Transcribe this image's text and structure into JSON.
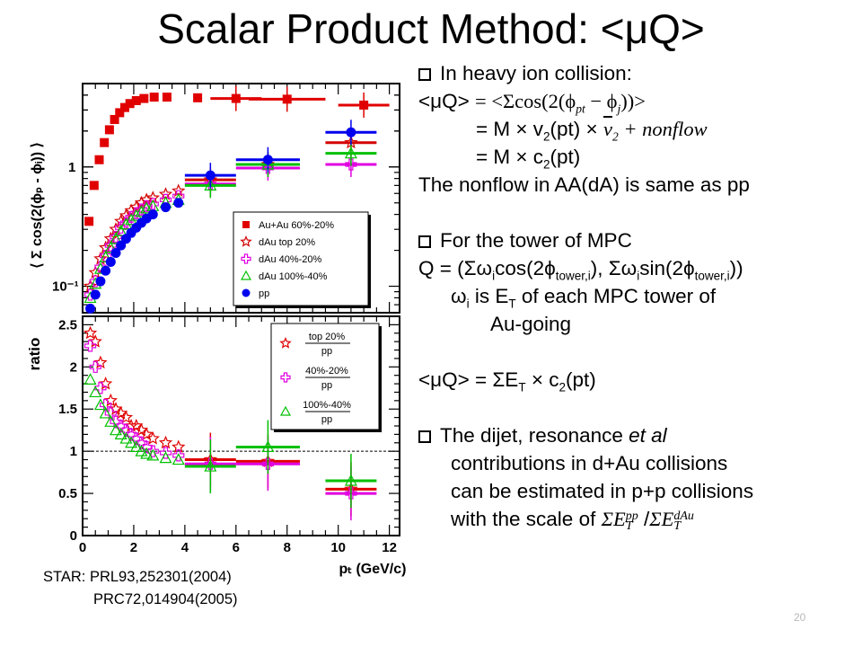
{
  "slide": {
    "title": "Scalar Product Method: <μQ>",
    "bullet1": {
      "heading": "In heavy ion collision:",
      "line1_lhs": "<μQ>",
      "line1_rhs": "= <Σcos(2(ϕ",
      "line1_sub1": "pt",
      "line1_mid": " − ϕ",
      "line1_sub2": "j",
      "line1_end": "))>",
      "line2_a": "= M × v",
      "line2_sub": "2",
      "line2_b": "(pt) × ",
      "line2_vbar": "v",
      "line2_vsub": "2",
      "line2_c": " + nonflow",
      "line3_a": "= M × c",
      "line3_sub": "2",
      "line3_b": "(pt)",
      "line4": "The nonflow in AA(dA) is same as pp"
    },
    "bullet2": {
      "heading": "For the tower of MPC",
      "q_a": "Q = (Σω",
      "q_i1": "i",
      "q_b": "cos(2ϕ",
      "q_sub1": "tower,i",
      "q_c": "), Σω",
      "q_i2": "i",
      "q_d": "sin(2ϕ",
      "q_sub2": "tower,i",
      "q_e": "))",
      "w_a": "ω",
      "w_i": "i",
      "w_b": " is E",
      "w_T": "T",
      "w_c": " of each MPC tower of",
      "w_line2": "Au-going",
      "mu_a": "<μQ> = ΣE",
      "mu_T": "T",
      "mu_b": " × c",
      "mu_sub": "2",
      "mu_c": "(pt)"
    },
    "bullet3": {
      "line1_a": "The dijet, resonance ",
      "line1_it": "et al",
      "line2": "contributions in d+Au collisions",
      "line3": "can be estimated in p+p collisions",
      "line4_a": "with the scale of ",
      "scale_num_a": "ΣE",
      "scale_num_sup": "pp",
      "scale_num_sub": "T",
      "scale_slash": " /",
      "scale_den_a": "ΣE",
      "scale_den_sup": "dAu",
      "scale_den_sub": "T"
    },
    "reference_line1": "STAR:  PRL93,252301(2004)",
    "reference_line2": "PRC72,014904(2005)",
    "page_number": "20"
  },
  "chart_data": [
    {
      "type": "scatter",
      "panel": "top",
      "ylabel": "⟨ Σ cos(2(ϕₚ - ϕᵢ)) ⟩",
      "yscale": "log",
      "ylim": [
        0.06,
        5
      ],
      "xlim": [
        0,
        12
      ],
      "yticks": [
        "1",
        "10⁻¹"
      ],
      "legend_position": "bottom-right",
      "series": [
        {
          "name": "Au+Au 60%-20%",
          "color": "#e00000",
          "marker": "square",
          "x": [
            0.25,
            0.45,
            0.65,
            0.85,
            1.05,
            1.25,
            1.45,
            1.65,
            1.85,
            2.1,
            2.4,
            2.8,
            3.3,
            4.5,
            6.0,
            8.0,
            11.0
          ],
          "y": [
            0.35,
            0.7,
            1.15,
            1.6,
            2.05,
            2.5,
            2.85,
            3.15,
            3.4,
            3.6,
            3.75,
            3.85,
            3.85,
            3.8,
            3.75,
            3.7,
            3.3
          ]
        },
        {
          "name": "dAu top 20%",
          "color": "#d40000",
          "marker": "star",
          "x": [
            0.3,
            0.5,
            0.7,
            0.9,
            1.1,
            1.3,
            1.5,
            1.7,
            1.9,
            2.1,
            2.3,
            2.5,
            2.75,
            3.25,
            3.75,
            5.0,
            7.25,
            10.5
          ],
          "y": [
            0.1,
            0.13,
            0.17,
            0.21,
            0.25,
            0.3,
            0.35,
            0.39,
            0.43,
            0.46,
            0.5,
            0.53,
            0.55,
            0.59,
            0.63,
            0.78,
            1.05,
            1.6
          ]
        },
        {
          "name": "dAu 40%-20%",
          "color": "#e000e0",
          "marker": "open-cross",
          "x": [
            0.3,
            0.5,
            0.7,
            0.9,
            1.1,
            1.3,
            1.5,
            1.7,
            1.9,
            2.1,
            2.3,
            2.5,
            2.75,
            3.25,
            3.75,
            5.0,
            7.25,
            10.5
          ],
          "y": [
            0.085,
            0.11,
            0.145,
            0.18,
            0.22,
            0.26,
            0.31,
            0.34,
            0.38,
            0.41,
            0.44,
            0.47,
            0.49,
            0.53,
            0.57,
            0.72,
            0.98,
            1.05
          ]
        },
        {
          "name": "dAu 100%-40%",
          "color": "#00c000",
          "marker": "open-triangle",
          "x": [
            0.3,
            0.5,
            0.7,
            0.9,
            1.1,
            1.3,
            1.5,
            1.7,
            1.9,
            2.1,
            2.3,
            2.5,
            2.75,
            3.25,
            3.75,
            5.0,
            7.25,
            10.5
          ],
          "y": [
            0.08,
            0.105,
            0.14,
            0.175,
            0.21,
            0.25,
            0.29,
            0.33,
            0.36,
            0.39,
            0.42,
            0.45,
            0.47,
            0.5,
            0.53,
            0.7,
            1.05,
            1.3
          ]
        },
        {
          "name": "pp",
          "color": "#0000ee",
          "marker": "circle",
          "x": [
            0.3,
            0.5,
            0.7,
            0.9,
            1.1,
            1.3,
            1.5,
            1.7,
            1.9,
            2.1,
            2.3,
            2.5,
            2.75,
            3.25,
            3.75,
            5.0,
            7.25,
            10.5
          ],
          "y": [
            0.065,
            0.085,
            0.11,
            0.135,
            0.16,
            0.19,
            0.22,
            0.25,
            0.28,
            0.31,
            0.34,
            0.37,
            0.4,
            0.46,
            0.5,
            0.85,
            1.15,
            1.95
          ]
        }
      ]
    },
    {
      "type": "scatter",
      "panel": "bottom",
      "xlabel": "pₜ (GeV/c)",
      "ylabel": "ratio",
      "xlim": [
        0,
        12.4
      ],
      "ylim": [
        0,
        2.6
      ],
      "xticks": [
        "0",
        "2",
        "4",
        "6",
        "8",
        "10",
        "12"
      ],
      "yticks": [
        "0",
        "0.5",
        "1",
        "1.5",
        "2",
        "2.5"
      ],
      "reference_line": 1,
      "legend_position": "top-right",
      "series": [
        {
          "name": "top 20%",
          "denominator": "pp",
          "color": "#e00000",
          "marker": "star",
          "x": [
            0.3,
            0.5,
            0.7,
            0.9,
            1.1,
            1.3,
            1.5,
            1.7,
            1.9,
            2.1,
            2.3,
            2.5,
            2.75,
            3.25,
            3.75,
            5.0,
            7.25,
            10.5
          ],
          "y": [
            2.4,
            2.3,
            2.05,
            1.8,
            1.6,
            1.5,
            1.45,
            1.4,
            1.3,
            1.3,
            1.25,
            1.2,
            1.15,
            1.1,
            1.05,
            0.9,
            0.88,
            0.55
          ]
        },
        {
          "name": "40%-20%",
          "denominator": "pp",
          "color": "#e000e0",
          "marker": "open-cross",
          "x": [
            0.3,
            0.5,
            0.7,
            0.9,
            1.1,
            1.3,
            1.5,
            1.7,
            1.9,
            2.1,
            2.3,
            2.5,
            2.75,
            3.25,
            3.75,
            5.0,
            7.25,
            10.5
          ],
          "y": [
            2.25,
            2.0,
            1.75,
            1.55,
            1.45,
            1.35,
            1.3,
            1.25,
            1.2,
            1.15,
            1.1,
            1.05,
            1.0,
            0.98,
            0.95,
            0.85,
            0.85,
            0.5
          ]
        },
        {
          "name": "100%-40%",
          "denominator": "pp",
          "color": "#00c000",
          "marker": "open-triangle",
          "x": [
            0.3,
            0.5,
            0.7,
            0.9,
            1.1,
            1.3,
            1.5,
            1.7,
            1.9,
            2.1,
            2.3,
            2.5,
            2.75,
            3.25,
            3.75,
            5.0,
            7.25,
            10.5
          ],
          "y": [
            1.85,
            1.7,
            1.55,
            1.45,
            1.35,
            1.25,
            1.2,
            1.15,
            1.1,
            1.05,
            1.0,
            0.97,
            0.95,
            0.92,
            0.9,
            0.82,
            1.05,
            0.65
          ]
        }
      ]
    }
  ]
}
